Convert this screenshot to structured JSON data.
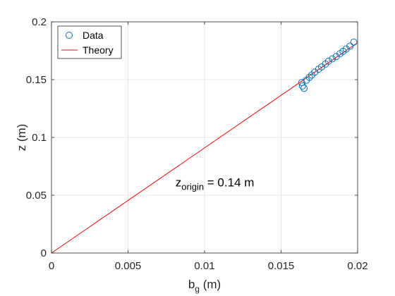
{
  "chart_data": {
    "type": "scatter",
    "xlabel_main": "b",
    "xlabel_sub": "g",
    "xlabel_unit": " (m)",
    "ylabel": "z (m)",
    "xlim": [
      0,
      0.02
    ],
    "ylim": [
      0,
      0.2
    ],
    "xticks": [
      0,
      0.005,
      0.01,
      0.015,
      0.02
    ],
    "xtick_labels": [
      "0",
      "0.005",
      "0.01",
      "0.015",
      "0.02"
    ],
    "yticks": [
      0,
      0.05,
      0.1,
      0.15,
      0.2
    ],
    "ytick_labels": [
      "0",
      "0.05",
      "0.1",
      "0.15",
      "0.2"
    ],
    "grid": true,
    "legend_position": "top-left",
    "legend": {
      "data_label": "Data",
      "theory_label": "Theory"
    },
    "series": [
      {
        "name": "Data",
        "kind": "marker-o",
        "color": "#0072BD",
        "points": [
          [
            0.01635,
            0.1475
          ],
          [
            0.0164,
            0.1445
          ],
          [
            0.0165,
            0.1425
          ],
          [
            0.01665,
            0.1495
          ],
          [
            0.01685,
            0.152
          ],
          [
            0.017,
            0.154
          ],
          [
            0.0172,
            0.1565
          ],
          [
            0.01745,
            0.159
          ],
          [
            0.01765,
            0.161
          ],
          [
            0.0179,
            0.1635
          ],
          [
            0.0181,
            0.166
          ],
          [
            0.01835,
            0.168
          ],
          [
            0.0186,
            0.17
          ],
          [
            0.01885,
            0.1725
          ],
          [
            0.01905,
            0.1745
          ],
          [
            0.01925,
            0.1765
          ],
          [
            0.0195,
            0.179
          ],
          [
            0.01975,
            0.1825
          ]
        ]
      },
      {
        "name": "Theory",
        "kind": "line",
        "color": "#FF0000",
        "points": [
          [
            0,
            0
          ],
          [
            0.01995,
            0.1815
          ]
        ]
      }
    ],
    "annotation": {
      "main": "z",
      "sub": "origin",
      "rest": " = 0.14 m",
      "x": 0.0081,
      "y": 0.0575
    }
  }
}
